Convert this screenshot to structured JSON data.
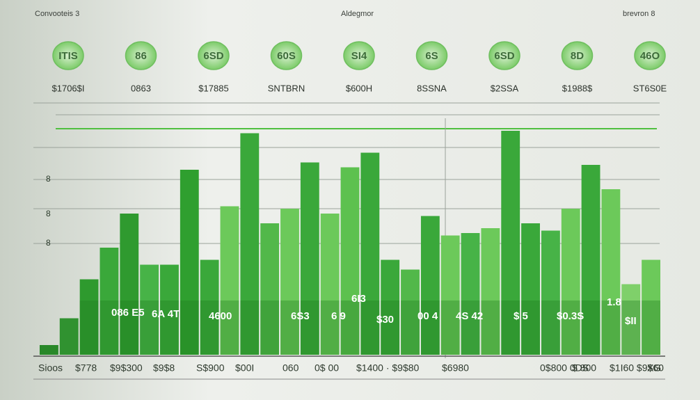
{
  "header": {
    "left": "Convooteis 3",
    "center": "Aldegmor",
    "right": "brevron 8"
  },
  "coins": [
    {
      "label": "ITIS",
      "price": "$1706$I"
    },
    {
      "label": "86",
      "price": "0863"
    },
    {
      "label": "6SD",
      "price": "$17885"
    },
    {
      "label": "60S",
      "price": "SNTBRN"
    },
    {
      "label": "SI4",
      "price": "$600H"
    },
    {
      "label": "6S",
      "price": "8SSNA"
    },
    {
      "label": "6SD",
      "price": "$2SSA"
    },
    {
      "label": "8D",
      "price": "$1988$"
    },
    {
      "label": "46O",
      "price": "ST6S0E"
    }
  ],
  "y_labels": [
    "8",
    "8",
    "8"
  ],
  "annotations": [
    "086 E5",
    "6A 4T",
    "4600",
    "6S3",
    "6 9",
    "6I3",
    "$30",
    "00 4",
    "4S 42",
    "$ 5",
    "$0.3S",
    "1.8",
    "$II"
  ],
  "footer_labels": [
    "Sioos",
    "$778",
    "$9$300",
    "$9$8",
    "S$900",
    "$00I",
    "060",
    "0$ 00",
    "$1400 · $9$80",
    "$6980",
    "0$800 0DS",
    "$ 800",
    "$1I60 $9$60",
    "XG"
  ],
  "chart_data": {
    "type": "bar",
    "values": [
      4,
      15,
      31,
      44,
      58,
      37,
      37,
      76,
      39,
      61,
      91,
      54,
      60,
      79,
      58,
      77,
      83,
      39,
      35,
      57,
      49,
      50,
      52,
      92,
      54,
      51,
      60,
      78,
      68,
      29,
      39
    ],
    "colors": [
      "#2f8f2f",
      "#3a9f3a",
      "#2e9a2e",
      "#3aa83a",
      "#2f9a2f",
      "#47b347",
      "#3aa83a",
      "#2f9f2f",
      "#3aa83a",
      "#6cc95a",
      "#3aa83a",
      "#52b84a",
      "#6cc95a",
      "#3aa83a",
      "#6cc95a",
      "#5dc14f",
      "#3aa83a",
      "#3aa83a",
      "#52b84a",
      "#3aa83a",
      "#6cc95a",
      "#47b347",
      "#6cc95a",
      "#3aa83a",
      "#3aa83a",
      "#47b347",
      "#6cc95a",
      "#3aa83a",
      "#6cc95a",
      "#7fd06a",
      "#6cc95a"
    ],
    "ylim": [
      0,
      100
    ]
  }
}
